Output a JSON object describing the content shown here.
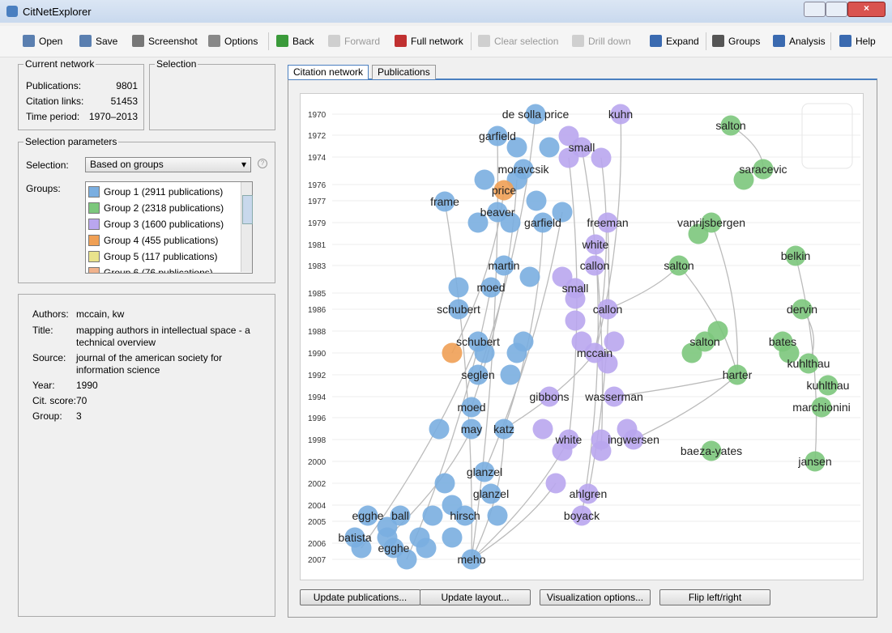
{
  "window": {
    "title": "CitNetExplorer"
  },
  "toolbar": [
    {
      "label": "Open",
      "enabled": true
    },
    {
      "label": "Save",
      "enabled": true
    },
    {
      "label": "Screenshot",
      "enabled": true
    },
    {
      "label": "Options",
      "enabled": true
    },
    {
      "label": "Back",
      "enabled": true
    },
    {
      "label": "Forward",
      "enabled": false
    },
    {
      "label": "Full network",
      "enabled": true
    },
    {
      "label": "Clear selection",
      "enabled": false
    },
    {
      "label": "Drill down",
      "enabled": false
    },
    {
      "label": "Expand",
      "enabled": true
    },
    {
      "label": "Groups",
      "enabled": true
    },
    {
      "label": "Analysis",
      "enabled": true
    },
    {
      "label": "Help",
      "enabled": true
    }
  ],
  "current_network": {
    "title": "Current network",
    "rows": [
      [
        "Publications:",
        "9801"
      ],
      [
        "Citation links:",
        "51453"
      ],
      [
        "Time period:",
        "1970–2013"
      ]
    ]
  },
  "selection": {
    "title": "Selection"
  },
  "selection_parameters": {
    "title": "Selection parameters",
    "selection_label": "Selection:",
    "selection_value": "Based on groups",
    "groups_label": "Groups:",
    "groups": [
      {
        "label": "Group 1 (2911 publications)",
        "color": "#7aaee0"
      },
      {
        "label": "Group 2 (2318 publications)",
        "color": "#7cc77c"
      },
      {
        "label": "Group 3 (1600 publications)",
        "color": "#b9a6ee"
      },
      {
        "label": "Group 4 (455 publications)",
        "color": "#f0a055"
      },
      {
        "label": "Group 5 (117 publications)",
        "color": "#e9e38c"
      },
      {
        "label": "Group 6 (76 publications)",
        "color": "#f0b28c"
      }
    ]
  },
  "details": [
    [
      "Authors:",
      "mccain, kw"
    ],
    [
      "Title:",
      "mapping authors in intellectual space - a technical overview"
    ],
    [
      "Source:",
      "journal of the american society for information science"
    ],
    [
      "Year:",
      "1990"
    ],
    [
      "Cit. score:",
      "70"
    ],
    [
      "Group:",
      "3"
    ]
  ],
  "tabs": [
    "Citation network",
    "Publications"
  ],
  "network": {
    "years": [
      "1970",
      "1972",
      "1974",
      "1976",
      "1977",
      "1979",
      "1981",
      "1983",
      "1985",
      "1986",
      "1988",
      "1990",
      "1992",
      "1994",
      "1996",
      "1998",
      "2000",
      "2002",
      "2004",
      "2005",
      "2006",
      "2007"
    ],
    "node_labels": [
      "de solla price",
      "kuhn",
      "salton",
      "garfield",
      "small",
      "moravcsik",
      "saracevic",
      "price",
      "frame",
      "beaver",
      "garfield",
      "freeman",
      "vanrijsbergen",
      "white",
      "martin",
      "callon",
      "salton",
      "belkin",
      "moed",
      "small",
      "schubert",
      "callon",
      "dervin",
      "schubert",
      "salton",
      "bates",
      "mccain",
      "kuhlthau",
      "seglen",
      "harter",
      "kuhlthau",
      "gibbons",
      "wasserman",
      "marchionini",
      "moed",
      "may",
      "katz",
      "white",
      "ingwersen",
      "baeza-yates",
      "jansen",
      "glanzel",
      "glanzel",
      "ahlgren",
      "egghe",
      "ball",
      "hirsch",
      "boyack",
      "batista",
      "egghe",
      "meho"
    ]
  },
  "buttons": [
    "Update publications...",
    "Update layout...",
    "Visualization options...",
    "Flip left/right"
  ]
}
